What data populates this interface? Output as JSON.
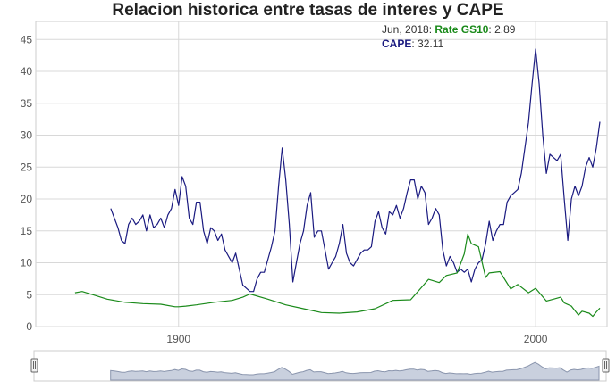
{
  "chart_data": {
    "type": "line",
    "title": "Relacion historica entre tasas de interes y CAPE",
    "xlim": [
      1860,
      2020
    ],
    "ylim": [
      0,
      47
    ],
    "grid": true,
    "x_ticks": [
      1900,
      2000
    ],
    "y_ticks": [
      0,
      5,
      10,
      15,
      20,
      25,
      30,
      35,
      40,
      45
    ],
    "tooltip": {
      "date": "Jun, 2018",
      "rate_label": "Rate GS10",
      "rate_value": "2.89",
      "cape_label": "CAPE",
      "cape_value": "32.11"
    },
    "series": [
      {
        "name": "CAPE",
        "color": "#1a1a80",
        "points": [
          [
            1881,
            18.5
          ],
          [
            1882,
            17
          ],
          [
            1883,
            15.5
          ],
          [
            1884,
            13.5
          ],
          [
            1885,
            13
          ],
          [
            1886,
            16
          ],
          [
            1887,
            17
          ],
          [
            1888,
            16
          ],
          [
            1889,
            16.5
          ],
          [
            1890,
            17.5
          ],
          [
            1891,
            15
          ],
          [
            1892,
            17.5
          ],
          [
            1893,
            15.5
          ],
          [
            1894,
            16
          ],
          [
            1895,
            17
          ],
          [
            1896,
            15.5
          ],
          [
            1897,
            17.5
          ],
          [
            1898,
            18.5
          ],
          [
            1899,
            21.5
          ],
          [
            1900,
            19
          ],
          [
            1901,
            23.5
          ],
          [
            1902,
            22
          ],
          [
            1903,
            17
          ],
          [
            1904,
            16
          ],
          [
            1905,
            19.5
          ],
          [
            1906,
            19.5
          ],
          [
            1907,
            15
          ],
          [
            1908,
            13
          ],
          [
            1909,
            15.5
          ],
          [
            1910,
            15
          ],
          [
            1911,
            13.5
          ],
          [
            1912,
            14.5
          ],
          [
            1913,
            12
          ],
          [
            1914,
            11
          ],
          [
            1915,
            10
          ],
          [
            1916,
            11.5
          ],
          [
            1917,
            9
          ],
          [
            1918,
            6.5
          ],
          [
            1919,
            6
          ],
          [
            1920,
            5.5
          ],
          [
            1921,
            5.5
          ],
          [
            1922,
            7.5
          ],
          [
            1923,
            8.5
          ],
          [
            1924,
            8.5
          ],
          [
            1925,
            10.5
          ],
          [
            1926,
            12.5
          ],
          [
            1927,
            15
          ],
          [
            1928,
            22
          ],
          [
            1929,
            28
          ],
          [
            1930,
            23
          ],
          [
            1931,
            16
          ],
          [
            1932,
            7
          ],
          [
            1933,
            10
          ],
          [
            1934,
            13
          ],
          [
            1935,
            15
          ],
          [
            1936,
            19
          ],
          [
            1937,
            21
          ],
          [
            1938,
            14
          ],
          [
            1939,
            15
          ],
          [
            1940,
            15
          ],
          [
            1941,
            12
          ],
          [
            1942,
            9
          ],
          [
            1943,
            10
          ],
          [
            1944,
            11
          ],
          [
            1945,
            13
          ],
          [
            1946,
            16
          ],
          [
            1947,
            11.5
          ],
          [
            1948,
            10
          ],
          [
            1949,
            9.5
          ],
          [
            1950,
            10.5
          ],
          [
            1951,
            11.5
          ],
          [
            1952,
            12
          ],
          [
            1953,
            12
          ],
          [
            1954,
            12.5
          ],
          [
            1955,
            16.5
          ],
          [
            1956,
            18
          ],
          [
            1957,
            15.5
          ],
          [
            1958,
            14.5
          ],
          [
            1959,
            18
          ],
          [
            1960,
            17.5
          ],
          [
            1961,
            19
          ],
          [
            1962,
            17
          ],
          [
            1963,
            18.5
          ],
          [
            1964,
            21
          ],
          [
            1965,
            23
          ],
          [
            1966,
            23
          ],
          [
            1967,
            20
          ],
          [
            1968,
            22
          ],
          [
            1969,
            21
          ],
          [
            1970,
            16
          ],
          [
            1971,
            17
          ],
          [
            1972,
            18.5
          ],
          [
            1973,
            17.5
          ],
          [
            1974,
            12
          ],
          [
            1975,
            9.5
          ],
          [
            1976,
            11
          ],
          [
            1977,
            10
          ],
          [
            1978,
            8.5
          ],
          [
            1979,
            9
          ],
          [
            1980,
            8.5
          ],
          [
            1981,
            9
          ],
          [
            1982,
            7
          ],
          [
            1983,
            9
          ],
          [
            1984,
            10
          ],
          [
            1985,
            10.5
          ],
          [
            1986,
            13
          ],
          [
            1987,
            16.5
          ],
          [
            1988,
            13.5
          ],
          [
            1989,
            15
          ],
          [
            1990,
            16
          ],
          [
            1991,
            16
          ],
          [
            1992,
            19.5
          ],
          [
            1993,
            20.5
          ],
          [
            1994,
            21
          ],
          [
            1995,
            21.5
          ],
          [
            1996,
            24
          ],
          [
            1997,
            28
          ],
          [
            1998,
            32
          ],
          [
            1999,
            38
          ],
          [
            2000,
            43.5
          ],
          [
            2001,
            38
          ],
          [
            2002,
            30
          ],
          [
            2003,
            24
          ],
          [
            2004,
            27
          ],
          [
            2005,
            26.5
          ],
          [
            2006,
            26
          ],
          [
            2007,
            27
          ],
          [
            2008,
            20
          ],
          [
            2009,
            13.5
          ],
          [
            2010,
            20
          ],
          [
            2011,
            22
          ],
          [
            2012,
            20.5
          ],
          [
            2013,
            22
          ],
          [
            2014,
            25
          ],
          [
            2015,
            26.5
          ],
          [
            2016,
            25
          ],
          [
            2017,
            28
          ],
          [
            2018,
            32.1
          ]
        ]
      },
      {
        "name": "Rate GS10",
        "color": "#1a8a1a",
        "points": [
          [
            1871,
            5.3
          ],
          [
            1873,
            5.5
          ],
          [
            1876,
            5
          ],
          [
            1880,
            4.3
          ],
          [
            1885,
            3.8
          ],
          [
            1890,
            3.6
          ],
          [
            1895,
            3.5
          ],
          [
            1899,
            3.1
          ],
          [
            1900,
            3.1
          ],
          [
            1902,
            3.2
          ],
          [
            1905,
            3.4
          ],
          [
            1910,
            3.8
          ],
          [
            1915,
            4.1
          ],
          [
            1918,
            4.6
          ],
          [
            1920,
            5.1
          ],
          [
            1925,
            4.3
          ],
          [
            1930,
            3.4
          ],
          [
            1935,
            2.8
          ],
          [
            1940,
            2.2
          ],
          [
            1945,
            2.1
          ],
          [
            1950,
            2.3
          ],
          [
            1955,
            2.8
          ],
          [
            1960,
            4.1
          ],
          [
            1965,
            4.2
          ],
          [
            1970,
            7.4
          ],
          [
            1973,
            6.9
          ],
          [
            1975,
            8
          ],
          [
            1978,
            8.4
          ],
          [
            1980,
            11.4
          ],
          [
            1981,
            14.5
          ],
          [
            1982,
            13
          ],
          [
            1984,
            12.5
          ],
          [
            1986,
            7.7
          ],
          [
            1987,
            8.4
          ],
          [
            1990,
            8.6
          ],
          [
            1993,
            5.9
          ],
          [
            1995,
            6.6
          ],
          [
            1998,
            5.3
          ],
          [
            2000,
            6
          ],
          [
            2003,
            4
          ],
          [
            2005,
            4.3
          ],
          [
            2007,
            4.6
          ],
          [
            2008,
            3.7
          ],
          [
            2010,
            3.2
          ],
          [
            2012,
            1.8
          ],
          [
            2013,
            2.4
          ],
          [
            2015,
            2.1
          ],
          [
            2016,
            1.6
          ],
          [
            2017,
            2.3
          ],
          [
            2018,
            2.9
          ]
        ]
      }
    ]
  }
}
